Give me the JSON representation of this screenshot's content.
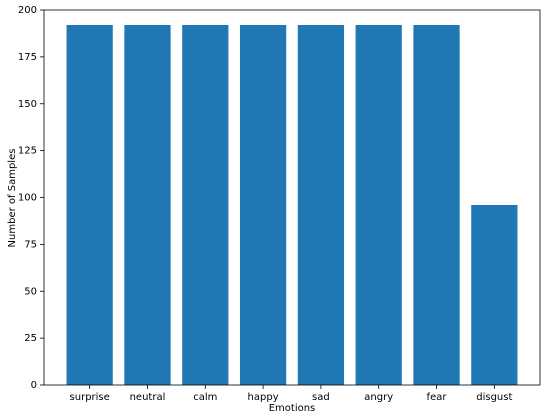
{
  "chart_data": {
    "type": "bar",
    "x_label": "Emotions",
    "y_label": "Number of Samples",
    "categories": [
      "surprise",
      "neutral",
      "calm",
      "happy",
      "sad",
      "angry",
      "fear",
      "disgust"
    ],
    "values": [
      192,
      192,
      192,
      192,
      192,
      192,
      192,
      96
    ],
    "color": "#1f77b4",
    "ylim": [
      0,
      200
    ],
    "yticks": [
      0,
      25,
      50,
      75,
      100,
      125,
      150,
      175,
      200
    ],
    "grid": false
  }
}
